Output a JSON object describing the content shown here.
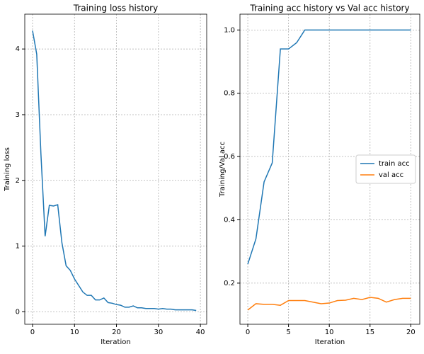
{
  "chart_data": [
    {
      "type": "line",
      "title": "Training loss history",
      "x_label": "Iteration",
      "y_label": "Training loss",
      "x": [
        0,
        1,
        2,
        3,
        4,
        5,
        6,
        7,
        8,
        9,
        10,
        11,
        12,
        13,
        14,
        15,
        16,
        17,
        18,
        19,
        20,
        21,
        22,
        23,
        24,
        25,
        26,
        27,
        28,
        29,
        30,
        31,
        32,
        33,
        34,
        35,
        36,
        37,
        38,
        39
      ],
      "series": [
        {
          "name": "Training loss",
          "color": "#1f77b4",
          "values": [
            4.28,
            3.92,
            2.4,
            1.15,
            1.62,
            1.61,
            1.63,
            1.05,
            0.7,
            0.63,
            0.5,
            0.4,
            0.3,
            0.25,
            0.25,
            0.18,
            0.18,
            0.21,
            0.14,
            0.13,
            0.11,
            0.1,
            0.07,
            0.07,
            0.09,
            0.06,
            0.06,
            0.05,
            0.05,
            0.05,
            0.04,
            0.05,
            0.04,
            0.04,
            0.03,
            0.03,
            0.03,
            0.03,
            0.03,
            0.02
          ]
        }
      ],
      "xlim": [
        -1.85,
        41.5
      ],
      "ylim": [
        -0.19,
        4.53
      ],
      "xticks": [
        0,
        10,
        20,
        30,
        40
      ],
      "yticks": [
        0,
        1,
        2,
        3,
        4
      ],
      "grid": true
    },
    {
      "type": "line",
      "title": "Training acc history vs Val acc history",
      "x_label": "Iteration",
      "y_label": "Training/Val acc",
      "x": [
        0,
        1,
        2,
        3,
        4,
        5,
        6,
        7,
        8,
        9,
        10,
        11,
        12,
        13,
        14,
        15,
        16,
        17,
        18,
        19,
        20
      ],
      "series": [
        {
          "name": "train acc",
          "color": "#1f77b4",
          "values": [
            0.26,
            0.34,
            0.52,
            0.58,
            0.94,
            0.94,
            0.96,
            1.0,
            1.0,
            1.0,
            1.0,
            1.0,
            1.0,
            1.0,
            1.0,
            1.0,
            1.0,
            1.0,
            1.0,
            1.0,
            1.0
          ]
        },
        {
          "name": "val acc",
          "color": "#ff7f0e",
          "values": [
            0.115,
            0.135,
            0.133,
            0.133,
            0.13,
            0.145,
            0.145,
            0.145,
            0.14,
            0.135,
            0.137,
            0.145,
            0.146,
            0.152,
            0.148,
            0.155,
            0.152,
            0.14,
            0.148,
            0.152,
            0.152
          ]
        }
      ],
      "xlim": [
        -0.96,
        21.1
      ],
      "ylim": [
        0.07,
        1.05
      ],
      "xticks": [
        0,
        5,
        10,
        15,
        20
      ],
      "yticks": [
        0.2,
        0.4,
        0.6,
        0.8,
        {
          "value": 1.0,
          "label": "1.0"
        }
      ],
      "grid": true,
      "legend": "center right"
    }
  ]
}
